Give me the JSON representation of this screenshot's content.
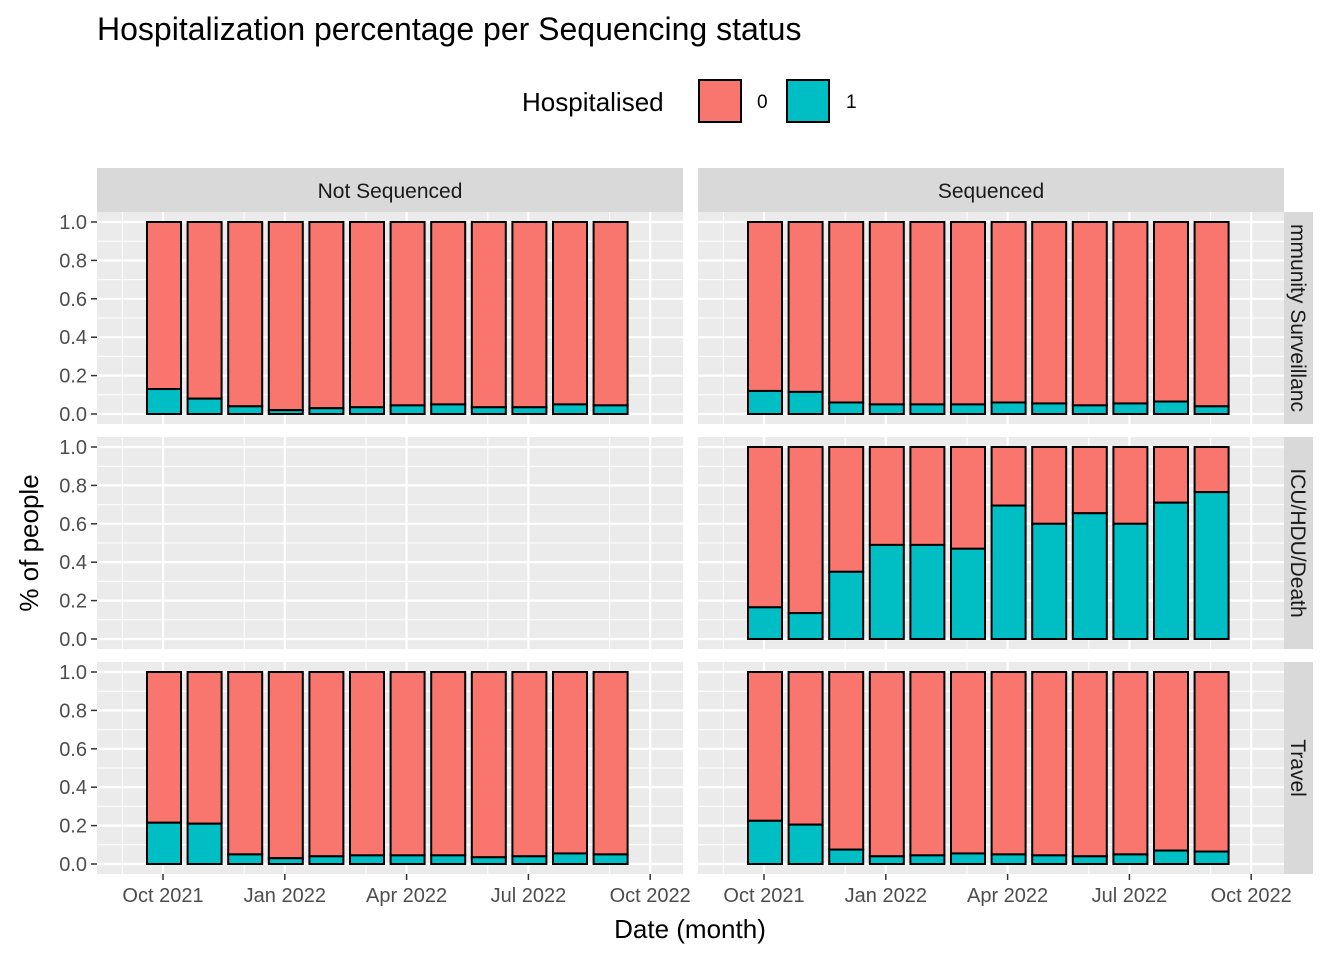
{
  "chart_data": {
    "type": "bar",
    "stacked": "fill",
    "title": "Hospitalization percentage per Sequencing status",
    "xlabel": "Date (month)",
    "ylabel": "% of people",
    "ylim": [
      0,
      1
    ],
    "y_ticks": [
      "0.0",
      "0.2",
      "0.4",
      "0.6",
      "0.8",
      "1.0"
    ],
    "x_ticks": [
      "Oct 2021",
      "Jan 2022",
      "Apr 2022",
      "Jul 2022",
      "Oct 2022"
    ],
    "categories": [
      "2021-09",
      "2021-10",
      "2021-11",
      "2021-12",
      "2022-01",
      "2022-02",
      "2022-03",
      "2022-04",
      "2022-05",
      "2022-06",
      "2022-07",
      "2022-08"
    ],
    "legend": {
      "title": "Hospitalised",
      "position": "top",
      "entries": [
        {
          "label": "0",
          "color": "#F8766D"
        },
        {
          "label": "1",
          "color": "#00BFC4"
        }
      ]
    },
    "facet_columns": [
      "Not Sequenced",
      "Sequenced"
    ],
    "facet_rows": [
      "Community Surveillance",
      "ICU/HDU/Death",
      "Travel"
    ],
    "facet_row_labels_visible": [
      "mmunity Surveillanc",
      "ICU/HDU/Death",
      "Travel"
    ],
    "panels": [
      {
        "col": "Not Sequenced",
        "row": "Community Surveillance",
        "series": [
          {
            "name": "1",
            "values": [
              0.13,
              0.08,
              0.04,
              0.02,
              0.03,
              0.035,
              0.045,
              0.05,
              0.035,
              0.035,
              0.05,
              0.045
            ]
          }
        ]
      },
      {
        "col": "Sequenced",
        "row": "Community Surveillance",
        "series": [
          {
            "name": "1",
            "values": [
              0.12,
              0.115,
              0.06,
              0.05,
              0.05,
              0.05,
              0.06,
              0.055,
              0.045,
              0.055,
              0.065,
              0.04
            ]
          }
        ]
      },
      {
        "col": "Not Sequenced",
        "row": "ICU/HDU/Death",
        "series": [
          {
            "name": "1",
            "values": []
          }
        ]
      },
      {
        "col": "Sequenced",
        "row": "ICU/HDU/Death",
        "series": [
          {
            "name": "1",
            "values": [
              0.165,
              0.135,
              0.35,
              0.49,
              0.49,
              0.47,
              0.695,
              0.6,
              0.655,
              0.6,
              0.71,
              0.765
            ]
          }
        ]
      },
      {
        "col": "Not Sequenced",
        "row": "Travel",
        "series": [
          {
            "name": "1",
            "values": [
              0.215,
              0.21,
              0.05,
              0.03,
              0.04,
              0.045,
              0.045,
              0.045,
              0.035,
              0.04,
              0.055,
              0.05
            ]
          }
        ]
      },
      {
        "col": "Sequenced",
        "row": "Travel",
        "series": [
          {
            "name": "1",
            "values": [
              0.225,
              0.205,
              0.075,
              0.04,
              0.045,
              0.055,
              0.05,
              0.045,
              0.04,
              0.05,
              0.07,
              0.065
            ]
          }
        ]
      }
    ]
  }
}
